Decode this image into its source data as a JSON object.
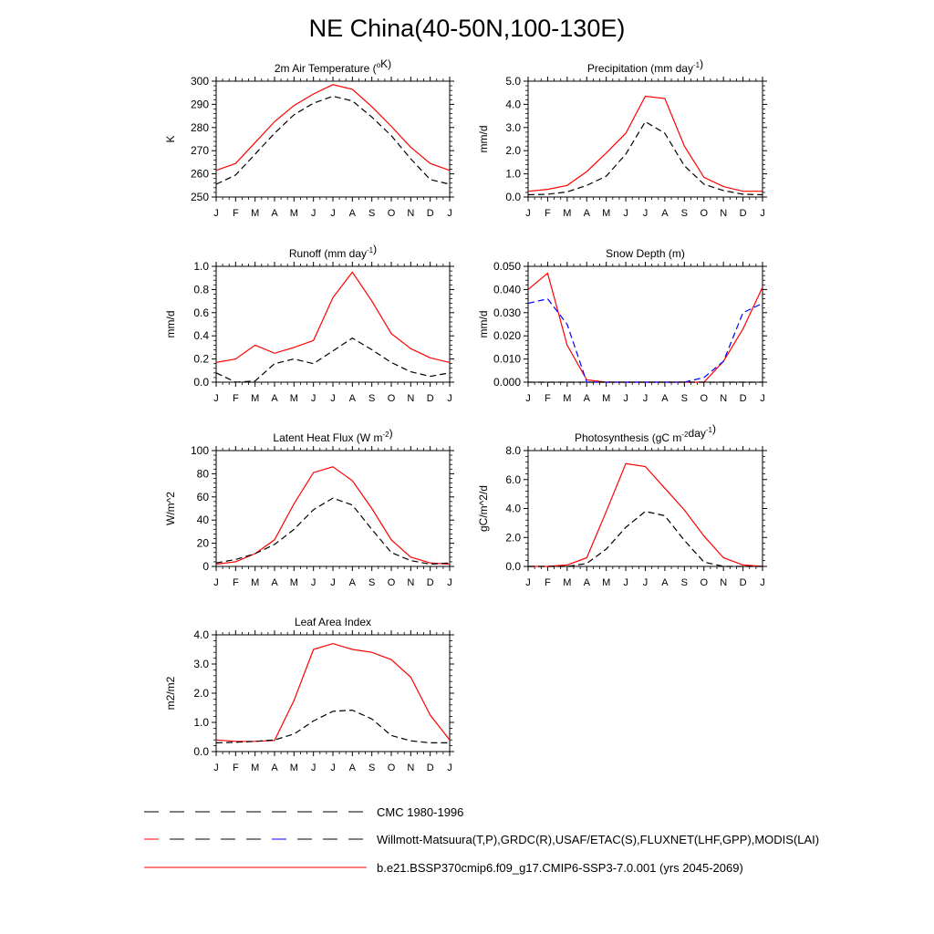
{
  "title": "NE China(40-50N,100-130E)",
  "months": [
    "J",
    "F",
    "M",
    "A",
    "M",
    "J",
    "J",
    "A",
    "S",
    "O",
    "N",
    "D",
    "J"
  ],
  "legend": [
    {
      "label": "CMC 1980-1996",
      "style": "dash-black"
    },
    {
      "label": "Willmott-Matsuura(T,P),GRDC(R),USAF/ETAC(S),FLUXNET(LHF,GPP),MODIS(LAI)",
      "style": "dash-red-blue"
    },
    {
      "label": "b.e21.BSSP370cmip6.f09_g17.CMIP6-SSP3-7.0.001 (yrs 2045-2069)",
      "style": "solid-red"
    }
  ],
  "colors": {
    "model": "#ff0000",
    "obs": "#000000",
    "cmc": "#0000ff"
  },
  "chart_data": [
    {
      "type": "line",
      "id": "tair",
      "title": [
        {
          "t": "2m Air Temperature ("
        },
        {
          "t": "o",
          "sup": true
        },
        {
          "t": "K)"
        }
      ],
      "ylabel": "K",
      "ylim": [
        250,
        300
      ],
      "yticks": [
        "250",
        "260",
        "270",
        "280",
        "290",
        "300"
      ],
      "series": [
        {
          "style": "solid-red",
          "values": [
            261.5,
            264.5,
            273.5,
            282.5,
            289.5,
            294.5,
            298.5,
            296.5,
            289,
            280.5,
            271.5,
            264.5,
            261.5
          ]
        },
        {
          "style": "dash-black",
          "values": [
            255.5,
            259.5,
            268.5,
            277.5,
            285.5,
            290.5,
            293.5,
            291.5,
            284.5,
            276.5,
            266.5,
            257.5,
            255.5
          ]
        }
      ]
    },
    {
      "type": "line",
      "id": "precip",
      "title": [
        {
          "t": "Precipitation (mm day"
        },
        {
          "t": "-1",
          "sup": true
        },
        {
          "t": ")"
        }
      ],
      "ylabel": "mm/d",
      "ylim": [
        0,
        5
      ],
      "yticks": [
        "0.0",
        "1.0",
        "2.0",
        "3.0",
        "4.0",
        "5.0"
      ],
      "series": [
        {
          "style": "solid-red",
          "values": [
            0.25,
            0.33,
            0.5,
            1.1,
            1.9,
            2.75,
            4.35,
            4.25,
            2.2,
            0.85,
            0.45,
            0.25,
            0.25
          ]
        },
        {
          "style": "dash-black",
          "values": [
            0.1,
            0.12,
            0.22,
            0.5,
            0.9,
            1.85,
            3.25,
            2.75,
            1.35,
            0.55,
            0.28,
            0.12,
            0.1
          ]
        }
      ]
    },
    {
      "type": "line",
      "id": "runoff",
      "title": [
        {
          "t": "Runoff (mm day"
        },
        {
          "t": "-1",
          "sup": true
        },
        {
          "t": ")"
        }
      ],
      "ylabel": "mm/d",
      "ylim": [
        0,
        1
      ],
      "yticks": [
        "0.0",
        "0.2",
        "0.4",
        "0.6",
        "0.8",
        "1.0"
      ],
      "series": [
        {
          "style": "solid-red",
          "values": [
            0.17,
            0.2,
            0.32,
            0.25,
            0.3,
            0.36,
            0.73,
            0.95,
            0.7,
            0.42,
            0.29,
            0.21,
            0.17
          ]
        },
        {
          "style": "dash-black",
          "values": [
            0.08,
            0.0,
            0.01,
            0.16,
            0.2,
            0.16,
            0.27,
            0.38,
            0.28,
            0.17,
            0.09,
            0.05,
            0.08
          ]
        }
      ]
    },
    {
      "type": "line",
      "id": "snow",
      "title": [
        {
          "t": "Snow Depth (m)"
        }
      ],
      "ylabel": "mm/d",
      "ylim": [
        0,
        0.05
      ],
      "yticks": [
        "0.000",
        "0.010",
        "0.020",
        "0.030",
        "0.040",
        "0.050"
      ],
      "series": [
        {
          "style": "solid-red",
          "values": [
            0.04,
            0.047,
            0.016,
            0.001,
            0,
            0,
            0,
            0,
            0,
            0,
            0.009,
            0.023,
            0.041
          ]
        },
        {
          "style": "dash-blue",
          "values": [
            0.034,
            0.036,
            0.025,
            0,
            0,
            0,
            0,
            0,
            0,
            0.002,
            0.009,
            0.03,
            0.034
          ]
        },
        {
          "style": "dash-black",
          "values": [
            0,
            0,
            0,
            0,
            0,
            0,
            0,
            0,
            0,
            0,
            0,
            0,
            0
          ]
        }
      ]
    },
    {
      "type": "line",
      "id": "lhf",
      "title": [
        {
          "t": "Latent Heat Flux (W m"
        },
        {
          "t": "-2",
          "sup": true
        },
        {
          "t": ")"
        }
      ],
      "ylabel": "W/m^2",
      "ylim": [
        0,
        100
      ],
      "yticks": [
        "0",
        "20",
        "40",
        "60",
        "80",
        "100"
      ],
      "series": [
        {
          "style": "solid-red",
          "values": [
            2,
            4,
            11,
            23,
            54,
            81,
            86,
            74,
            50,
            23,
            8,
            3,
            2
          ]
        },
        {
          "style": "dash-black",
          "values": [
            3,
            6,
            11,
            19,
            32,
            49,
            59,
            53,
            32,
            12,
            5,
            2,
            3
          ]
        }
      ]
    },
    {
      "type": "line",
      "id": "gpp",
      "title": [
        {
          "t": "Photosynthesis (gC m"
        },
        {
          "t": "-2",
          "sup": true
        },
        {
          "t": "day"
        },
        {
          "t": "-1",
          "sup": true
        },
        {
          "t": ")"
        }
      ],
      "ylabel": "gC/m^2/d",
      "ylim": [
        0,
        8
      ],
      "yticks": [
        "0.0",
        "2.0",
        "4.0",
        "6.0",
        "8.0"
      ],
      "series": [
        {
          "style": "solid-red",
          "values": [
            0,
            0,
            0.1,
            0.6,
            3.8,
            7.1,
            6.9,
            5.4,
            3.9,
            2.1,
            0.6,
            0.1,
            0
          ]
        },
        {
          "style": "dash-black",
          "values": [
            0,
            0,
            0,
            0.2,
            1.2,
            2.7,
            3.8,
            3.5,
            1.8,
            0.3,
            0,
            0,
            0
          ]
        }
      ]
    },
    {
      "type": "line",
      "id": "lai",
      "title": [
        {
          "t": "Leaf Area Index"
        }
      ],
      "ylabel": "m2/m2",
      "ylim": [
        0,
        4
      ],
      "yticks": [
        "0.0",
        "1.0",
        "2.0",
        "3.0",
        "4.0"
      ],
      "series": [
        {
          "style": "solid-red",
          "values": [
            0.4,
            0.35,
            0.35,
            0.38,
            1.75,
            3.5,
            3.7,
            3.5,
            3.4,
            3.15,
            2.55,
            1.25,
            0.4
          ]
        },
        {
          "style": "dash-black",
          "values": [
            0.3,
            0.32,
            0.35,
            0.4,
            0.6,
            1.05,
            1.38,
            1.42,
            1.12,
            0.55,
            0.37,
            0.3,
            0.3
          ]
        }
      ]
    }
  ]
}
